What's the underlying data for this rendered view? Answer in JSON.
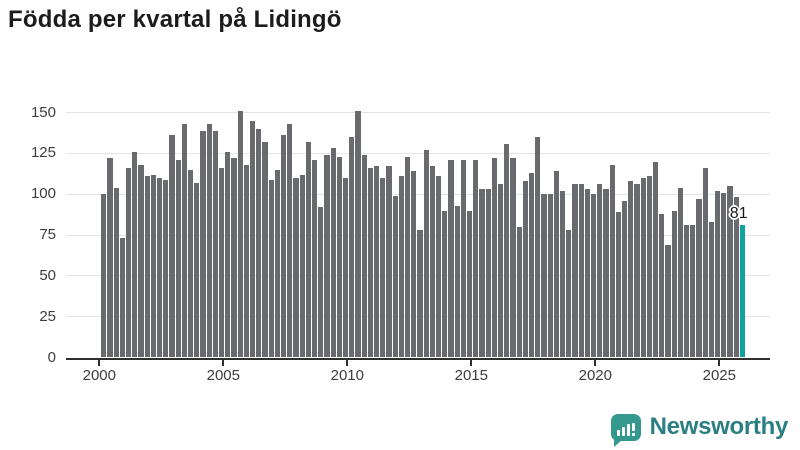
{
  "title": "Födda per kvartal på Lidingö",
  "chart_data": {
    "type": "bar",
    "title": "Födda per kvartal på Lidingö",
    "x_unit": "quarter",
    "start_period": "2000-Q1",
    "end_period": "2025-Q4",
    "values": [
      100,
      122,
      104,
      73,
      116,
      126,
      118,
      111,
      112,
      110,
      109,
      136,
      121,
      143,
      115,
      107,
      139,
      143,
      139,
      116,
      126,
      122,
      151,
      118,
      145,
      140,
      132,
      109,
      115,
      136,
      143,
      110,
      112,
      132,
      121,
      92,
      124,
      128,
      123,
      110,
      135,
      151,
      124,
      116,
      117,
      110,
      117,
      99,
      111,
      123,
      114,
      78,
      127,
      117,
      111,
      90,
      121,
      93,
      121,
      90,
      121,
      103,
      103,
      122,
      106,
      131,
      122,
      80,
      108,
      113,
      135,
      100,
      100,
      114,
      102,
      78,
      106,
      106,
      103,
      100,
      106,
      103,
      118,
      89,
      96,
      108,
      106,
      110,
      111,
      120,
      88,
      69,
      90,
      104,
      81,
      81,
      97,
      116,
      83,
      102,
      101,
      105,
      98,
      81
    ],
    "x_tick_labels": [
      "2000",
      "2005",
      "2010",
      "2015",
      "2020",
      "2025"
    ],
    "y_tick_labels": [
      "0",
      "25",
      "50",
      "75",
      "100",
      "125",
      "150"
    ],
    "ylim": [
      0,
      155
    ],
    "grid": "horizontal",
    "legend": "none",
    "bar_color": "#696a6e",
    "highlight_last": {
      "period": "2025-Q4",
      "value": 81,
      "label": "81",
      "color": "#0fa3a0"
    }
  },
  "footer": {
    "brand": "Newsworthy"
  }
}
